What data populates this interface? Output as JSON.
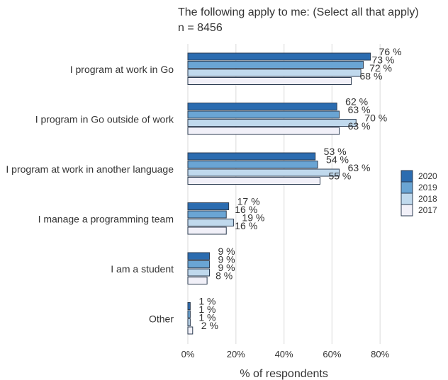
{
  "chart_data": {
    "type": "bar",
    "orientation": "horizontal",
    "title": "The following apply to me: (Select all that apply)",
    "subtitle": "n = 8456",
    "xlabel": "% of respondents",
    "ylabel": "",
    "xlim": [
      0,
      80
    ],
    "x_ticks": [
      "0%",
      "20%",
      "40%",
      "60%",
      "80%"
    ],
    "grid": "vertical",
    "legend_position": "right",
    "categories": [
      "I program at work in Go",
      "I program in Go outside of work",
      "I program at work in another language",
      "I manage a programming team",
      "I am a student",
      "Other"
    ],
    "series": [
      {
        "name": "2020",
        "color": "#2b6cb0",
        "values": [
          76,
          62,
          53,
          17,
          9,
          1
        ],
        "labels": [
          "76 %",
          "62 %",
          "53 %",
          "17 %",
          "9 %",
          "1 %"
        ]
      },
      {
        "name": "2019",
        "color": "#6aa5d4",
        "values": [
          73,
          63,
          54,
          16,
          9,
          1
        ],
        "labels": [
          "73 %",
          "63 %",
          "54 %",
          "16 %",
          "9 %",
          "1 %"
        ]
      },
      {
        "name": "2018",
        "color": "#c0d9ed",
        "values": [
          72,
          70,
          63,
          19,
          9,
          1
        ],
        "labels": [
          "72 %",
          "70 %",
          "63 %",
          "19 %",
          "9 %",
          "1 %"
        ]
      },
      {
        "name": "2017",
        "color": "#f1f0f8",
        "values": [
          68,
          63,
          55,
          16,
          8,
          2
        ],
        "labels": [
          "68 %",
          "63 %",
          "55 %",
          "16 %",
          "8 %",
          "2 %"
        ]
      }
    ]
  }
}
